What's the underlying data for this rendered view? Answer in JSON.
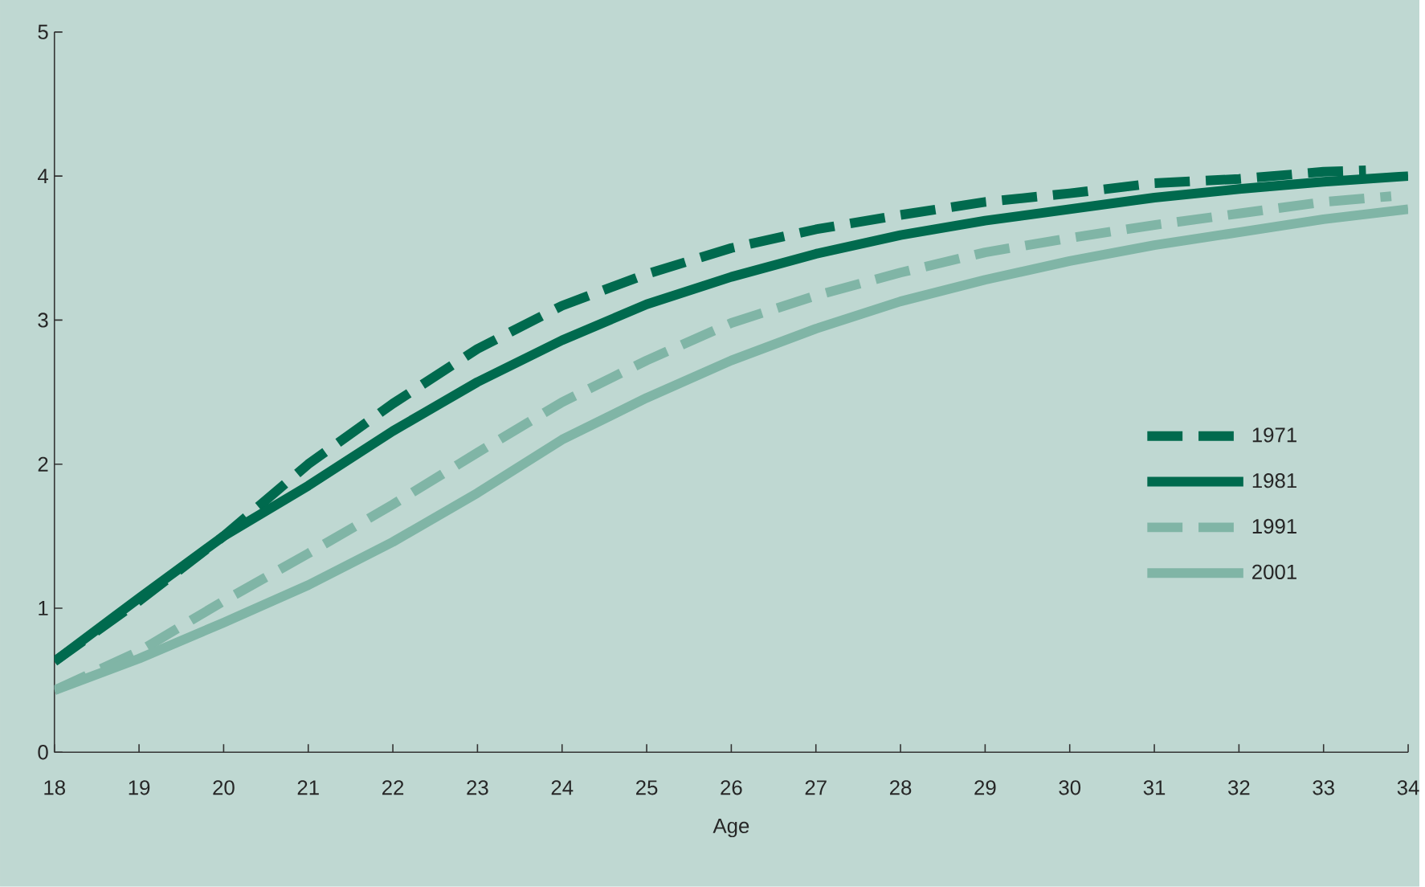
{
  "chart_data": {
    "type": "line",
    "xlabel": "Age",
    "x": [
      18,
      19,
      20,
      21,
      22,
      23,
      24,
      25,
      26,
      27,
      28,
      29,
      30,
      31,
      32,
      33,
      34
    ],
    "xlim": [
      18,
      34
    ],
    "xticks": [
      18,
      19,
      20,
      21,
      22,
      23,
      24,
      25,
      26,
      27,
      28,
      29,
      30,
      31,
      32,
      33,
      34
    ],
    "ylim": [
      0,
      5
    ],
    "yticks": [
      0,
      1,
      2,
      3,
      4,
      5
    ],
    "grid": false,
    "legend": "right",
    "marker": "none",
    "series": [
      {
        "name": "1971",
        "color": "#006a4e",
        "line_style": "dashed",
        "x": [
          18,
          19,
          20,
          21,
          22,
          23,
          24,
          25,
          26,
          27,
          28,
          29,
          30,
          31,
          32,
          33,
          33.5
        ],
        "values": [
          0.63,
          1.05,
          1.5,
          2.0,
          2.42,
          2.8,
          3.1,
          3.32,
          3.5,
          3.63,
          3.73,
          3.82,
          3.88,
          3.95,
          3.98,
          4.03,
          4.04
        ]
      },
      {
        "name": "1981",
        "color": "#006a4e",
        "line_style": "solid",
        "values": [
          0.63,
          1.07,
          1.5,
          1.85,
          2.23,
          2.57,
          2.86,
          3.11,
          3.3,
          3.46,
          3.59,
          3.69,
          3.77,
          3.85,
          3.91,
          3.96,
          4.0
        ]
      },
      {
        "name": "1991",
        "color": "#80b5a6",
        "line_style": "dashed",
        "x": [
          18,
          19,
          20,
          21,
          22,
          23,
          24,
          25,
          26,
          27,
          28,
          29,
          30,
          31,
          32,
          33,
          33.8
        ],
        "values": [
          0.43,
          0.7,
          1.05,
          1.38,
          1.72,
          2.08,
          2.43,
          2.72,
          2.98,
          3.17,
          3.33,
          3.47,
          3.57,
          3.66,
          3.74,
          3.82,
          3.86
        ]
      },
      {
        "name": "2001",
        "color": "#80b5a6",
        "line_style": "solid",
        "values": [
          0.43,
          0.65,
          0.9,
          1.16,
          1.46,
          1.8,
          2.17,
          2.46,
          2.72,
          2.94,
          3.13,
          3.28,
          3.41,
          3.52,
          3.61,
          3.7,
          3.77
        ]
      }
    ]
  }
}
